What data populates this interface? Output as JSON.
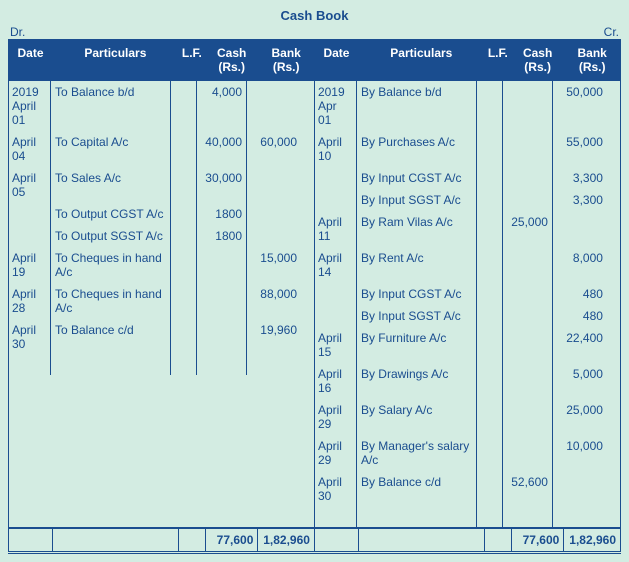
{
  "title": "Cash Book",
  "dr_label": "Dr.",
  "cr_label": "Cr.",
  "headers": {
    "date": "Date",
    "particulars": "Particulars",
    "lf": "L.F.",
    "cash": "Cash (Rs.)",
    "bank": "Bank (Rs.)"
  },
  "debit": {
    "rows": [
      {
        "date": "2019 April 01",
        "part": "To Balance b/d",
        "cash": "4,000",
        "bank": ""
      },
      {
        "date": "April 04",
        "part": "To Capital A/c",
        "cash": "40,000",
        "bank": "60,000"
      },
      {
        "date": "April 05",
        "part": "To Sales A/c",
        "cash": "30,000",
        "bank": ""
      },
      {
        "date": "",
        "part": "To Output CGST A/c",
        "cash": "1800",
        "bank": ""
      },
      {
        "date": "",
        "part": "To Output SGST A/c",
        "cash": "1800",
        "bank": ""
      },
      {
        "date": "April 19",
        "part": "To Cheques in hand A/c",
        "cash": "",
        "bank": "15,000"
      },
      {
        "date": "April 28",
        "part": "To Cheques in hand A/c",
        "cash": "",
        "bank": "88,000"
      },
      {
        "date": "April 30",
        "part": "To Balance c/d",
        "cash": "",
        "bank": "19,960"
      }
    ],
    "total_cash": "77,600",
    "total_bank": "1,82,960"
  },
  "credit": {
    "rows": [
      {
        "date": "2019 Apr 01",
        "part": "By Balance b/d",
        "cash": "",
        "bank": "50,000"
      },
      {
        "date": "April 10",
        "part": "By Purchases A/c",
        "cash": "",
        "bank": "55,000"
      },
      {
        "date": "",
        "part": "By Input CGST A/c",
        "cash": "",
        "bank": "3,300"
      },
      {
        "date": "",
        "part": "By Input SGST A/c",
        "cash": "",
        "bank": "3,300"
      },
      {
        "date": "April 11",
        "part": "By Ram Vilas A/c",
        "cash": "25,000",
        "bank": ""
      },
      {
        "date": "April 14",
        "part": "By Rent A/c",
        "cash": "",
        "bank": "8,000"
      },
      {
        "date": "",
        "part": "By Input CGST A/c",
        "cash": "",
        "bank": "480"
      },
      {
        "date": "",
        "part": "By Input SGST A/c",
        "cash": "",
        "bank": "480"
      },
      {
        "date": "April 15",
        "part": "By Furniture A/c",
        "cash": "",
        "bank": "22,400"
      },
      {
        "date": "April 16",
        "part": "By Drawings A/c",
        "cash": "",
        "bank": "5,000"
      },
      {
        "date": "April 29",
        "part": "By Salary A/c",
        "cash": "",
        "bank": "25,000"
      },
      {
        "date": "April 29",
        "part": "By Manager's salary A/c",
        "cash": "",
        "bank": "10,000"
      },
      {
        "date": "April 30",
        "part": "By Balance c/d",
        "cash": "52,600",
        "bank": ""
      }
    ],
    "total_cash": "77,600",
    "total_bank": "1,82,960"
  },
  "colors": {
    "background": "#d3ece2",
    "header_bg": "#1a4d8f",
    "header_text": "#ffffff",
    "border": "#1a4d8f",
    "text": "#1a4d8f"
  }
}
